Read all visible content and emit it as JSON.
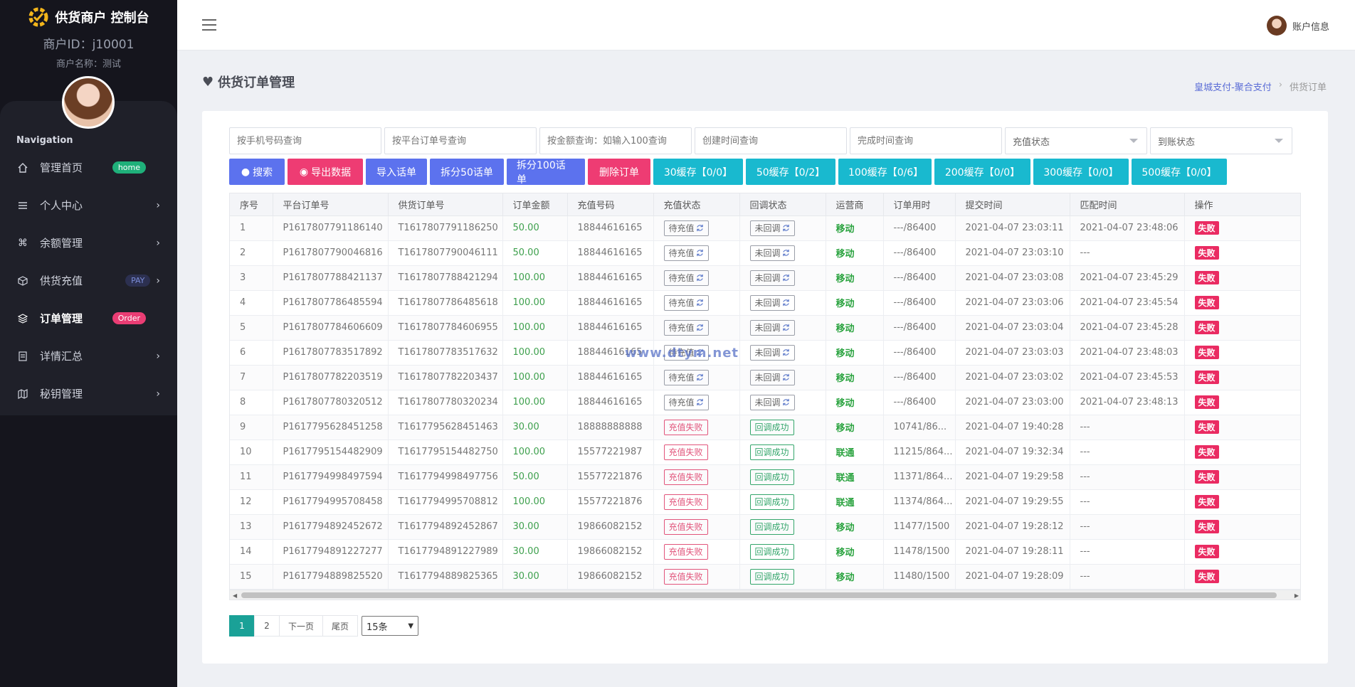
{
  "brand": {
    "title": "供货商户 控制台",
    "merchant_id": "商户ID：j10001",
    "merchant_name": "商户名称：测试"
  },
  "nav": {
    "title": "Navigation",
    "items": [
      {
        "label": "管理首页",
        "icon": "home-icon",
        "badge": "home",
        "badge_color": "#1fb07a"
      },
      {
        "label": "个人中心",
        "icon": "list-icon",
        "chevron": true
      },
      {
        "label": "余额管理",
        "icon": "command-icon",
        "chevron": true
      },
      {
        "label": "供货充值",
        "icon": "box-icon",
        "badge": "PAY",
        "chevron": true
      },
      {
        "label": "订单管理",
        "icon": "layers-icon",
        "badge": "Order",
        "badge_color": "#ea3d74",
        "active": true
      },
      {
        "label": "详情汇总",
        "icon": "document-icon",
        "chevron": true
      },
      {
        "label": "秘钥管理",
        "icon": "map-icon",
        "chevron": true
      }
    ]
  },
  "topbar": {
    "account_label": "账户信息"
  },
  "page": {
    "title": "供货订单管理",
    "breadcrumb": [
      "皇城支付-聚合支付",
      "供货订单"
    ]
  },
  "filters": {
    "phone_placeholder": "按手机号码查询",
    "platform_order_placeholder": "按平台订单号查询",
    "amount_placeholder": "按金额查询：如输入100查询",
    "created_time_placeholder": "创建时间查询",
    "finished_time_placeholder": "完成时间查询",
    "recharge_status_select": "充值状态",
    "account_status_select": "到账状态"
  },
  "actions": {
    "search": "搜索",
    "export": "导出数据",
    "import": "导入话单",
    "split50": "拆分50话单",
    "split100": "拆分100话单",
    "delete": "删除订单",
    "cache30": "30缓存【0/0】",
    "cache50": "50缓存【0/2】",
    "cache100": "100缓存【0/6】",
    "cache200": "200缓存【0/0】",
    "cache300": "300缓存【0/0】",
    "cache500": "500缓存【0/0】"
  },
  "table": {
    "columns": [
      "序号",
      "平台订单号",
      "供货订单号",
      "订单金额",
      "充值号码",
      "充值状态",
      "回调状态",
      "运营商",
      "订单用时",
      "提交时间",
      "匹配时间",
      "操作"
    ],
    "rows": [
      {
        "no": "1",
        "platform": "P1617807791186140",
        "supply": "T1617807791186250",
        "amount": "50.00",
        "phone": "18844616165",
        "recharge": "待充值",
        "callback": "未回调",
        "operator": "移动",
        "duration": "---/86400",
        "submit": "2021-04-07 23:03:11",
        "match": "2021-04-07 23:48:06",
        "action": "失败"
      },
      {
        "no": "2",
        "platform": "P1617807790046816",
        "supply": "T1617807790046111",
        "amount": "50.00",
        "phone": "18844616165",
        "recharge": "待充值",
        "callback": "未回调",
        "operator": "移动",
        "duration": "---/86400",
        "submit": "2021-04-07 23:03:10",
        "match": "---",
        "action": "失败"
      },
      {
        "no": "3",
        "platform": "P1617807788421137",
        "supply": "T1617807788421294",
        "amount": "100.00",
        "phone": "18844616165",
        "recharge": "待充值",
        "callback": "未回调",
        "operator": "移动",
        "duration": "---/86400",
        "submit": "2021-04-07 23:03:08",
        "match": "2021-04-07 23:45:29",
        "action": "失败"
      },
      {
        "no": "4",
        "platform": "P1617807786485594",
        "supply": "T1617807786485618",
        "amount": "100.00",
        "phone": "18844616165",
        "recharge": "待充值",
        "callback": "未回调",
        "operator": "移动",
        "duration": "---/86400",
        "submit": "2021-04-07 23:03:06",
        "match": "2021-04-07 23:45:54",
        "action": "失败"
      },
      {
        "no": "5",
        "platform": "P1617807784606609",
        "supply": "T1617807784606955",
        "amount": "100.00",
        "phone": "18844616165",
        "recharge": "待充值",
        "callback": "未回调",
        "operator": "移动",
        "duration": "---/86400",
        "submit": "2021-04-07 23:03:04",
        "match": "2021-04-07 23:45:28",
        "action": "失败"
      },
      {
        "no": "6",
        "platform": "P1617807783517892",
        "supply": "T1617807783517632",
        "amount": "100.00",
        "phone": "18844616165",
        "recharge": "待充值",
        "callback": "未回调",
        "operator": "移动",
        "duration": "---/86400",
        "submit": "2021-04-07 23:03:03",
        "match": "2021-04-07 23:48:03",
        "action": "失败"
      },
      {
        "no": "7",
        "platform": "P1617807782203519",
        "supply": "T1617807782203437",
        "amount": "100.00",
        "phone": "18844616165",
        "recharge": "待充值",
        "callback": "未回调",
        "operator": "移动",
        "duration": "---/86400",
        "submit": "2021-04-07 23:03:02",
        "match": "2021-04-07 23:45:53",
        "action": "失败"
      },
      {
        "no": "8",
        "platform": "P1617807780320512",
        "supply": "T1617807780320234",
        "amount": "100.00",
        "phone": "18844616165",
        "recharge": "待充值",
        "callback": "未回调",
        "operator": "移动",
        "duration": "---/86400",
        "submit": "2021-04-07 23:03:00",
        "match": "2021-04-07 23:48:13",
        "action": "失败"
      },
      {
        "no": "9",
        "platform": "P1617795628451258",
        "supply": "T1617795628451463",
        "amount": "30.00",
        "phone": "18888888888",
        "recharge": "充值失败",
        "callback": "回调成功",
        "operator": "移动",
        "duration": "10741/86...",
        "submit": "2021-04-07 19:40:28",
        "match": "---",
        "action": "失败"
      },
      {
        "no": "10",
        "platform": "P1617795154482909",
        "supply": "T1617795154482750",
        "amount": "100.00",
        "phone": "15577221987",
        "recharge": "充值失败",
        "callback": "回调成功",
        "operator": "联通",
        "duration": "11215/864...",
        "submit": "2021-04-07 19:32:34",
        "match": "---",
        "action": "失败"
      },
      {
        "no": "11",
        "platform": "P1617794998497594",
        "supply": "T1617794998497756",
        "amount": "50.00",
        "phone": "15577221876",
        "recharge": "充值失败",
        "callback": "回调成功",
        "operator": "联通",
        "duration": "11371/864...",
        "submit": "2021-04-07 19:29:58",
        "match": "---",
        "action": "失败"
      },
      {
        "no": "12",
        "platform": "P1617794995708458",
        "supply": "T1617794995708812",
        "amount": "100.00",
        "phone": "15577221876",
        "recharge": "充值失败",
        "callback": "回调成功",
        "operator": "联通",
        "duration": "11374/864...",
        "submit": "2021-04-07 19:29:55",
        "match": "---",
        "action": "失败"
      },
      {
        "no": "13",
        "platform": "P1617794892452672",
        "supply": "T1617794892452867",
        "amount": "30.00",
        "phone": "19866082152",
        "recharge": "充值失败",
        "callback": "回调成功",
        "operator": "移动",
        "duration": "11477/1500",
        "submit": "2021-04-07 19:28:12",
        "match": "---",
        "action": "失败"
      },
      {
        "no": "14",
        "platform": "P1617794891227277",
        "supply": "T1617794891227989",
        "amount": "30.00",
        "phone": "19866082152",
        "recharge": "充值失败",
        "callback": "回调成功",
        "operator": "移动",
        "duration": "11478/1500",
        "submit": "2021-04-07 19:28:11",
        "match": "---",
        "action": "失败"
      },
      {
        "no": "15",
        "platform": "P1617794889825520",
        "supply": "T1617794889825365",
        "amount": "30.00",
        "phone": "19866082152",
        "recharge": "充值失败",
        "callback": "回调成功",
        "operator": "移动",
        "duration": "11480/1500",
        "submit": "2021-04-07 19:28:09",
        "match": "---",
        "action": "失败"
      }
    ]
  },
  "pager": {
    "pages": [
      "1",
      "2"
    ],
    "next": "下一页",
    "last": "尾页",
    "page_size": "15条"
  },
  "watermark": "www.dtym.net",
  "colors": {
    "accent_blue": "#5c72ee",
    "accent_pink": "#ee3c73",
    "accent_teal": "#19b9cf",
    "pager_active": "#1aa197"
  }
}
